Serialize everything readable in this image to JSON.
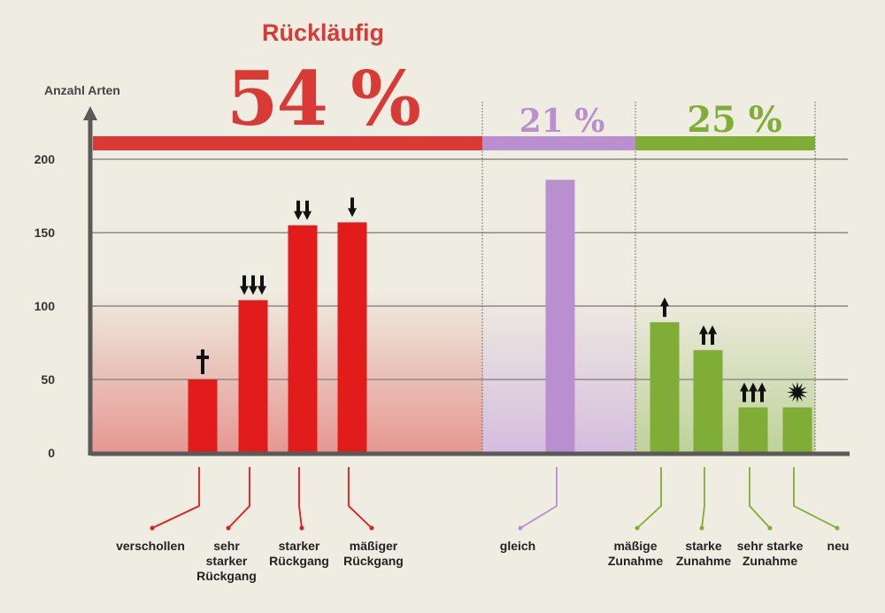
{
  "chart_data": {
    "type": "bar",
    "title": "Rückläufig",
    "ylabel": "Anzahl Arten",
    "ylim": [
      0,
      200
    ],
    "yticks": [
      0,
      50,
      100,
      150,
      200
    ],
    "grid": true,
    "categories": [
      "verschollen",
      "sehr\nstarker\nRückgang",
      "starker\nRückgang",
      "mäßiger\nRückgang",
      "gleich",
      "mäßige\nZunahme",
      "starke\nZunahme",
      "sehr starke\nZunahme",
      "neu"
    ],
    "values": [
      50,
      104,
      155,
      157,
      186,
      89,
      70,
      31,
      31
    ],
    "symbols": [
      "dagger",
      "arrow-down-3",
      "arrow-down-2",
      "arrow-down-1",
      "",
      "arrow-up-1",
      "arrow-up-2",
      "arrow-up-3",
      "star-burst"
    ],
    "groups": [
      {
        "label": "Rückläufig",
        "percent": "54 %",
        "color": "#d93a36"
      },
      {
        "label": "",
        "percent": "21 %",
        "color": "#b98fd0"
      },
      {
        "label": "",
        "percent": "25 %",
        "color": "#80ad35"
      }
    ],
    "bar_colors": [
      "#e21b1b",
      "#e21b1b",
      "#e21b1b",
      "#e21b1b",
      "#b98fd0",
      "#80ad35",
      "#80ad35",
      "#80ad35",
      "#80ad35"
    ]
  }
}
